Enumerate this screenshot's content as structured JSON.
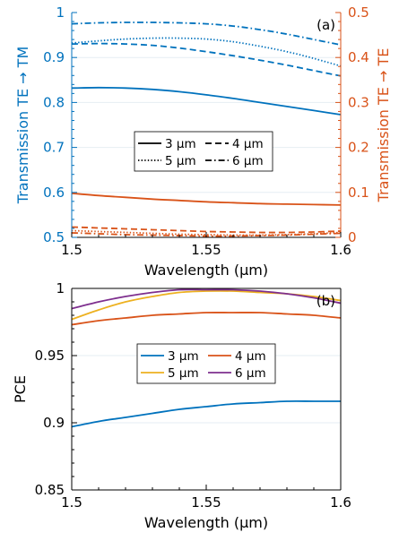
{
  "colors": {
    "blue": "#0072bd",
    "orange": "#d95319",
    "yellow": "#edb120",
    "purple": "#7e2f8e",
    "grid": "#e6eef3"
  },
  "chart_data": [
    {
      "type": "line",
      "panel_label": "(a)",
      "xlabel": "Wavelength (µm)",
      "ylabel": "Transmission TE → TM",
      "ylabel_right": "Transmission TE → TE",
      "xlim": [
        1.5,
        1.6
      ],
      "ylim": [
        0.5,
        1.0
      ],
      "ylim_right": [
        0,
        0.5
      ],
      "xticks": [
        1.5,
        1.55,
        1.6
      ],
      "xtick_labels": [
        "1.5",
        "1.55",
        "1.6"
      ],
      "yticks": [
        0.5,
        0.6,
        0.7,
        0.8,
        0.9,
        1.0
      ],
      "ytick_labels": [
        "0.5",
        "0.6",
        "0.7",
        "0.8",
        "0.9",
        "1"
      ],
      "yticks_right": [
        0,
        0.1,
        0.2,
        0.3,
        0.4,
        0.5
      ],
      "ytick_labels_right": [
        "0",
        "0.1",
        "0.2",
        "0.3",
        "0.4",
        "0.5"
      ],
      "grid": "horizontal",
      "legend_position": "center",
      "legend": [
        {
          "label": "3 µm",
          "dash": "solid"
        },
        {
          "label": "4 µm",
          "dash": "dashed"
        },
        {
          "label": "5 µm",
          "dash": "dotted"
        },
        {
          "label": "6 µm",
          "dash": "dashdot"
        }
      ],
      "x": [
        1.5,
        1.51,
        1.52,
        1.53,
        1.54,
        1.55,
        1.56,
        1.57,
        1.58,
        1.59,
        1.6
      ],
      "series": [
        {
          "axis": "left",
          "color": "blue",
          "dash": "solid",
          "values": [
            0.832,
            0.833,
            0.832,
            0.829,
            0.824,
            0.817,
            0.809,
            0.8,
            0.791,
            0.782,
            0.773
          ]
        },
        {
          "axis": "left",
          "color": "blue",
          "dash": "dashed",
          "values": [
            0.93,
            0.931,
            0.93,
            0.927,
            0.921,
            0.913,
            0.904,
            0.894,
            0.883,
            0.871,
            0.859
          ]
        },
        {
          "axis": "left",
          "color": "blue",
          "dash": "dotted",
          "values": [
            0.932,
            0.937,
            0.941,
            0.943,
            0.943,
            0.941,
            0.935,
            0.925,
            0.913,
            0.898,
            0.881
          ]
        },
        {
          "axis": "left",
          "color": "blue",
          "dash": "dashdot",
          "values": [
            0.975,
            0.977,
            0.978,
            0.978,
            0.977,
            0.975,
            0.97,
            0.962,
            0.952,
            0.94,
            0.928
          ]
        },
        {
          "axis": "right",
          "color": "orange",
          "dash": "solid",
          "values": [
            0.098,
            0.093,
            0.089,
            0.085,
            0.082,
            0.079,
            0.077,
            0.075,
            0.074,
            0.073,
            0.072
          ]
        },
        {
          "axis": "right",
          "color": "orange",
          "dash": "dashed",
          "values": [
            0.023,
            0.021,
            0.019,
            0.017,
            0.015,
            0.013,
            0.012,
            0.011,
            0.011,
            0.012,
            0.014
          ]
        },
        {
          "axis": "right",
          "color": "orange",
          "dash": "dotted",
          "values": [
            0.015,
            0.013,
            0.011,
            0.009,
            0.007,
            0.006,
            0.005,
            0.005,
            0.006,
            0.008,
            0.011
          ]
        },
        {
          "axis": "right",
          "color": "orange",
          "dash": "dashdot",
          "values": [
            0.01,
            0.008,
            0.006,
            0.005,
            0.004,
            0.003,
            0.003,
            0.004,
            0.005,
            0.007,
            0.009
          ]
        }
      ]
    },
    {
      "type": "line",
      "panel_label": "(b)",
      "xlabel": "Wavelength (µm)",
      "ylabel": "PCE",
      "xlim": [
        1.5,
        1.6
      ],
      "ylim": [
        0.85,
        1.0
      ],
      "xticks": [
        1.5,
        1.55,
        1.6
      ],
      "xtick_labels": [
        "1.5",
        "1.55",
        "1.6"
      ],
      "yticks": [
        0.85,
        0.9,
        0.95,
        1.0
      ],
      "ytick_labels": [
        "0.85",
        "0.9",
        "0.95",
        "1"
      ],
      "grid": "horizontal",
      "legend_position": "center",
      "legend": [
        {
          "label": "3 µm",
          "color": "blue"
        },
        {
          "label": "4 µm",
          "color": "orange"
        },
        {
          "label": "5 µm",
          "color": "yellow"
        },
        {
          "label": "6 µm",
          "color": "purple"
        }
      ],
      "x": [
        1.5,
        1.51,
        1.52,
        1.53,
        1.54,
        1.55,
        1.56,
        1.57,
        1.58,
        1.59,
        1.6
      ],
      "series": [
        {
          "color": "blue",
          "values": [
            0.897,
            0.901,
            0.904,
            0.907,
            0.91,
            0.912,
            0.914,
            0.915,
            0.916,
            0.916,
            0.916
          ]
        },
        {
          "color": "orange",
          "values": [
            0.973,
            0.976,
            0.978,
            0.98,
            0.981,
            0.982,
            0.982,
            0.982,
            0.981,
            0.98,
            0.978
          ]
        },
        {
          "color": "yellow",
          "values": [
            0.977,
            0.984,
            0.99,
            0.994,
            0.997,
            0.998,
            0.998,
            0.997,
            0.996,
            0.994,
            0.991
          ]
        },
        {
          "color": "purple",
          "values": [
            0.985,
            0.99,
            0.994,
            0.997,
            0.999,
            0.999,
            0.999,
            0.998,
            0.996,
            0.993,
            0.989
          ]
        }
      ]
    }
  ]
}
